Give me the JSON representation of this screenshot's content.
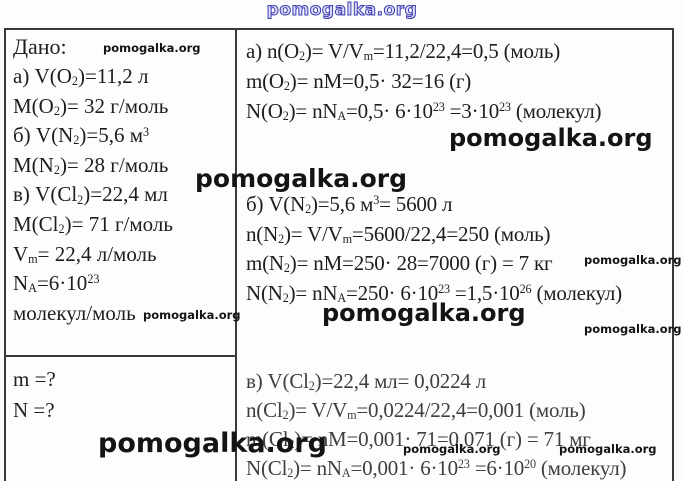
{
  "watermark": "pomogalka.org",
  "given": {
    "title": "Дано:",
    "lines": [
      "а) V(O_{2})=11,2 л",
      "M(O_{2})= 32 г/моль",
      "б) V(N_{2})=5,6 м^{3}",
      "M(N_{2})= 28 г/моль",
      "в) V(Cl_{2})=22,4 мл",
      "M(Cl_{2})= 71 г/моль",
      "V_{m}= 22,4 л/моль",
      "N_{A}=6·10^{23}",
      "молекул/моль"
    ],
    "find": [
      "m =?",
      "N =?"
    ]
  },
  "solution": {
    "section_a": [
      "а) n(O_{2})= V/V_{m}=11,2/22,4=0,5 (моль)",
      "m(O_{2})= nM=0,5· 32=16 (г)",
      "N(O_{2})= nN_{A}=0,5· 6·10^{23} =3·10^{23} (молекул)"
    ],
    "section_b": [
      "б) V(N_{2})=5,6 м^{3}= 5600 л",
      "n(N_{2})= V/V_{m}=5600/22,4=250 (моль)",
      "m(N_{2})= nM=250· 28=7000 (г) = 7 кг",
      "N(N_{2})= nN_{A}=250· 6·10^{23} =1,5·10^{26} (молекул)"
    ],
    "section_v": [
      "в) V(Cl_{2})=22,4 мл= 0,0224 л",
      "n(Cl_{2})= V/V_{m}=0,0224/22,4=0,001 (моль)",
      "m(Cl_{2})= nM=0,001· 71=0,071 (г) = 71 мг",
      "N(Cl_{2})= nN_{A}=0,001· 6·10^{23} =6·10^{20} (молекул)"
    ]
  }
}
